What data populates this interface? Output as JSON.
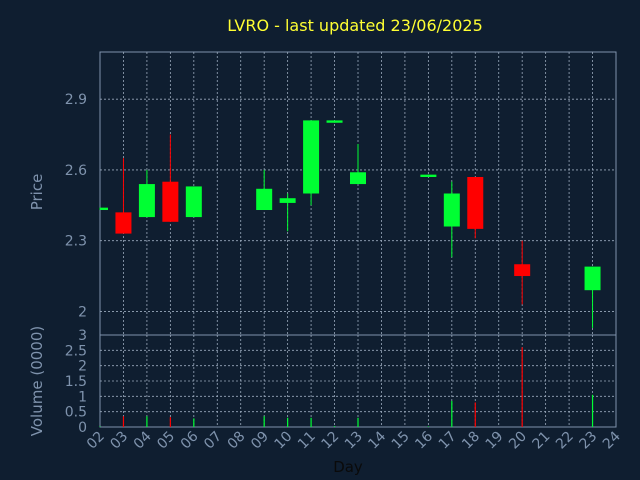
{
  "colors": {
    "background": "#0f1e30",
    "frame": "#7f93ad",
    "grid": "#9aa9bc",
    "axis_text": "#7f93ad",
    "title": "#ffff33",
    "up": "#00ff33",
    "down": "#ff0000"
  },
  "chart_data": [
    {
      "type": "candlestick",
      "title": "LVRO - last updated 23/06/2025",
      "ylabel": "Price",
      "xlabel": "Day",
      "x_ticks": [
        "02",
        "03",
        "04",
        "05",
        "06",
        "07",
        "08",
        "09",
        "10",
        "11",
        "12",
        "13",
        "14",
        "15",
        "16",
        "17",
        "18",
        "19",
        "20",
        "21",
        "22",
        "23",
        "24"
      ],
      "x_range": [
        2,
        24
      ],
      "ylim": [
        1.9,
        2.1
      ],
      "y_range": [
        1.9,
        3.1
      ],
      "y_ticks": [
        "2",
        "2.3",
        "2.6",
        "2.9"
      ],
      "y_tick_values": [
        2.0,
        2.3,
        2.6,
        2.9
      ],
      "grid": true,
      "candles": [
        {
          "day": 2,
          "open": 2.43,
          "close": 2.44,
          "high": 2.44,
          "low": 2.43
        },
        {
          "day": 3,
          "open": 2.42,
          "close": 2.33,
          "high": 2.65,
          "low": 2.33
        },
        {
          "day": 4,
          "open": 2.4,
          "close": 2.54,
          "high": 2.6,
          "low": 2.4
        },
        {
          "day": 5,
          "open": 2.55,
          "close": 2.38,
          "high": 2.75,
          "low": 2.38
        },
        {
          "day": 6,
          "open": 2.4,
          "close": 2.53,
          "high": 2.53,
          "low": 2.4
        },
        {
          "day": 9,
          "open": 2.43,
          "close": 2.52,
          "high": 2.6,
          "low": 2.43
        },
        {
          "day": 10,
          "open": 2.46,
          "close": 2.48,
          "high": 2.5,
          "low": 2.34
        },
        {
          "day": 11,
          "open": 2.5,
          "close": 2.81,
          "high": 2.81,
          "low": 2.45
        },
        {
          "day": 12,
          "open": 2.8,
          "close": 2.81,
          "high": 2.81,
          "low": 2.8
        },
        {
          "day": 13,
          "open": 2.54,
          "close": 2.59,
          "high": 2.71,
          "low": 2.54
        },
        {
          "day": 16,
          "open": 2.57,
          "close": 2.58,
          "high": 2.58,
          "low": 2.57
        },
        {
          "day": 17,
          "open": 2.36,
          "close": 2.5,
          "high": 2.55,
          "low": 2.23
        },
        {
          "day": 18,
          "open": 2.57,
          "close": 2.35,
          "high": 2.57,
          "low": 2.31
        },
        {
          "day": 20,
          "open": 2.2,
          "close": 2.15,
          "high": 2.3,
          "low": 2.03
        },
        {
          "day": 23,
          "open": 2.09,
          "close": 2.19,
          "high": 2.19,
          "low": 1.93
        }
      ]
    },
    {
      "type": "bar",
      "ylabel": "Volume (0000)",
      "y_range": [
        0,
        3
      ],
      "y_ticks": [
        "0",
        "0.5",
        "1",
        "1.5",
        "2",
        "2.5",
        "3"
      ],
      "y_tick_values": [
        0,
        0.5,
        1,
        1.5,
        2,
        2.5,
        3
      ],
      "grid": true,
      "volumes": [
        {
          "day": 2,
          "value": 0.02,
          "dir": "up"
        },
        {
          "day": 3,
          "value": 0.35,
          "dir": "down"
        },
        {
          "day": 4,
          "value": 0.35,
          "dir": "up"
        },
        {
          "day": 5,
          "value": 0.32,
          "dir": "down"
        },
        {
          "day": 6,
          "value": 0.28,
          "dir": "up"
        },
        {
          "day": 9,
          "value": 0.35,
          "dir": "up"
        },
        {
          "day": 10,
          "value": 0.3,
          "dir": "up"
        },
        {
          "day": 11,
          "value": 0.3,
          "dir": "up"
        },
        {
          "day": 12,
          "value": 0.03,
          "dir": "up"
        },
        {
          "day": 13,
          "value": 0.3,
          "dir": "up"
        },
        {
          "day": 16,
          "value": 0.02,
          "dir": "up"
        },
        {
          "day": 17,
          "value": 0.85,
          "dir": "up"
        },
        {
          "day": 18,
          "value": 0.8,
          "dir": "down"
        },
        {
          "day": 20,
          "value": 2.6,
          "dir": "down"
        },
        {
          "day": 23,
          "value": 1.05,
          "dir": "up"
        }
      ]
    }
  ]
}
